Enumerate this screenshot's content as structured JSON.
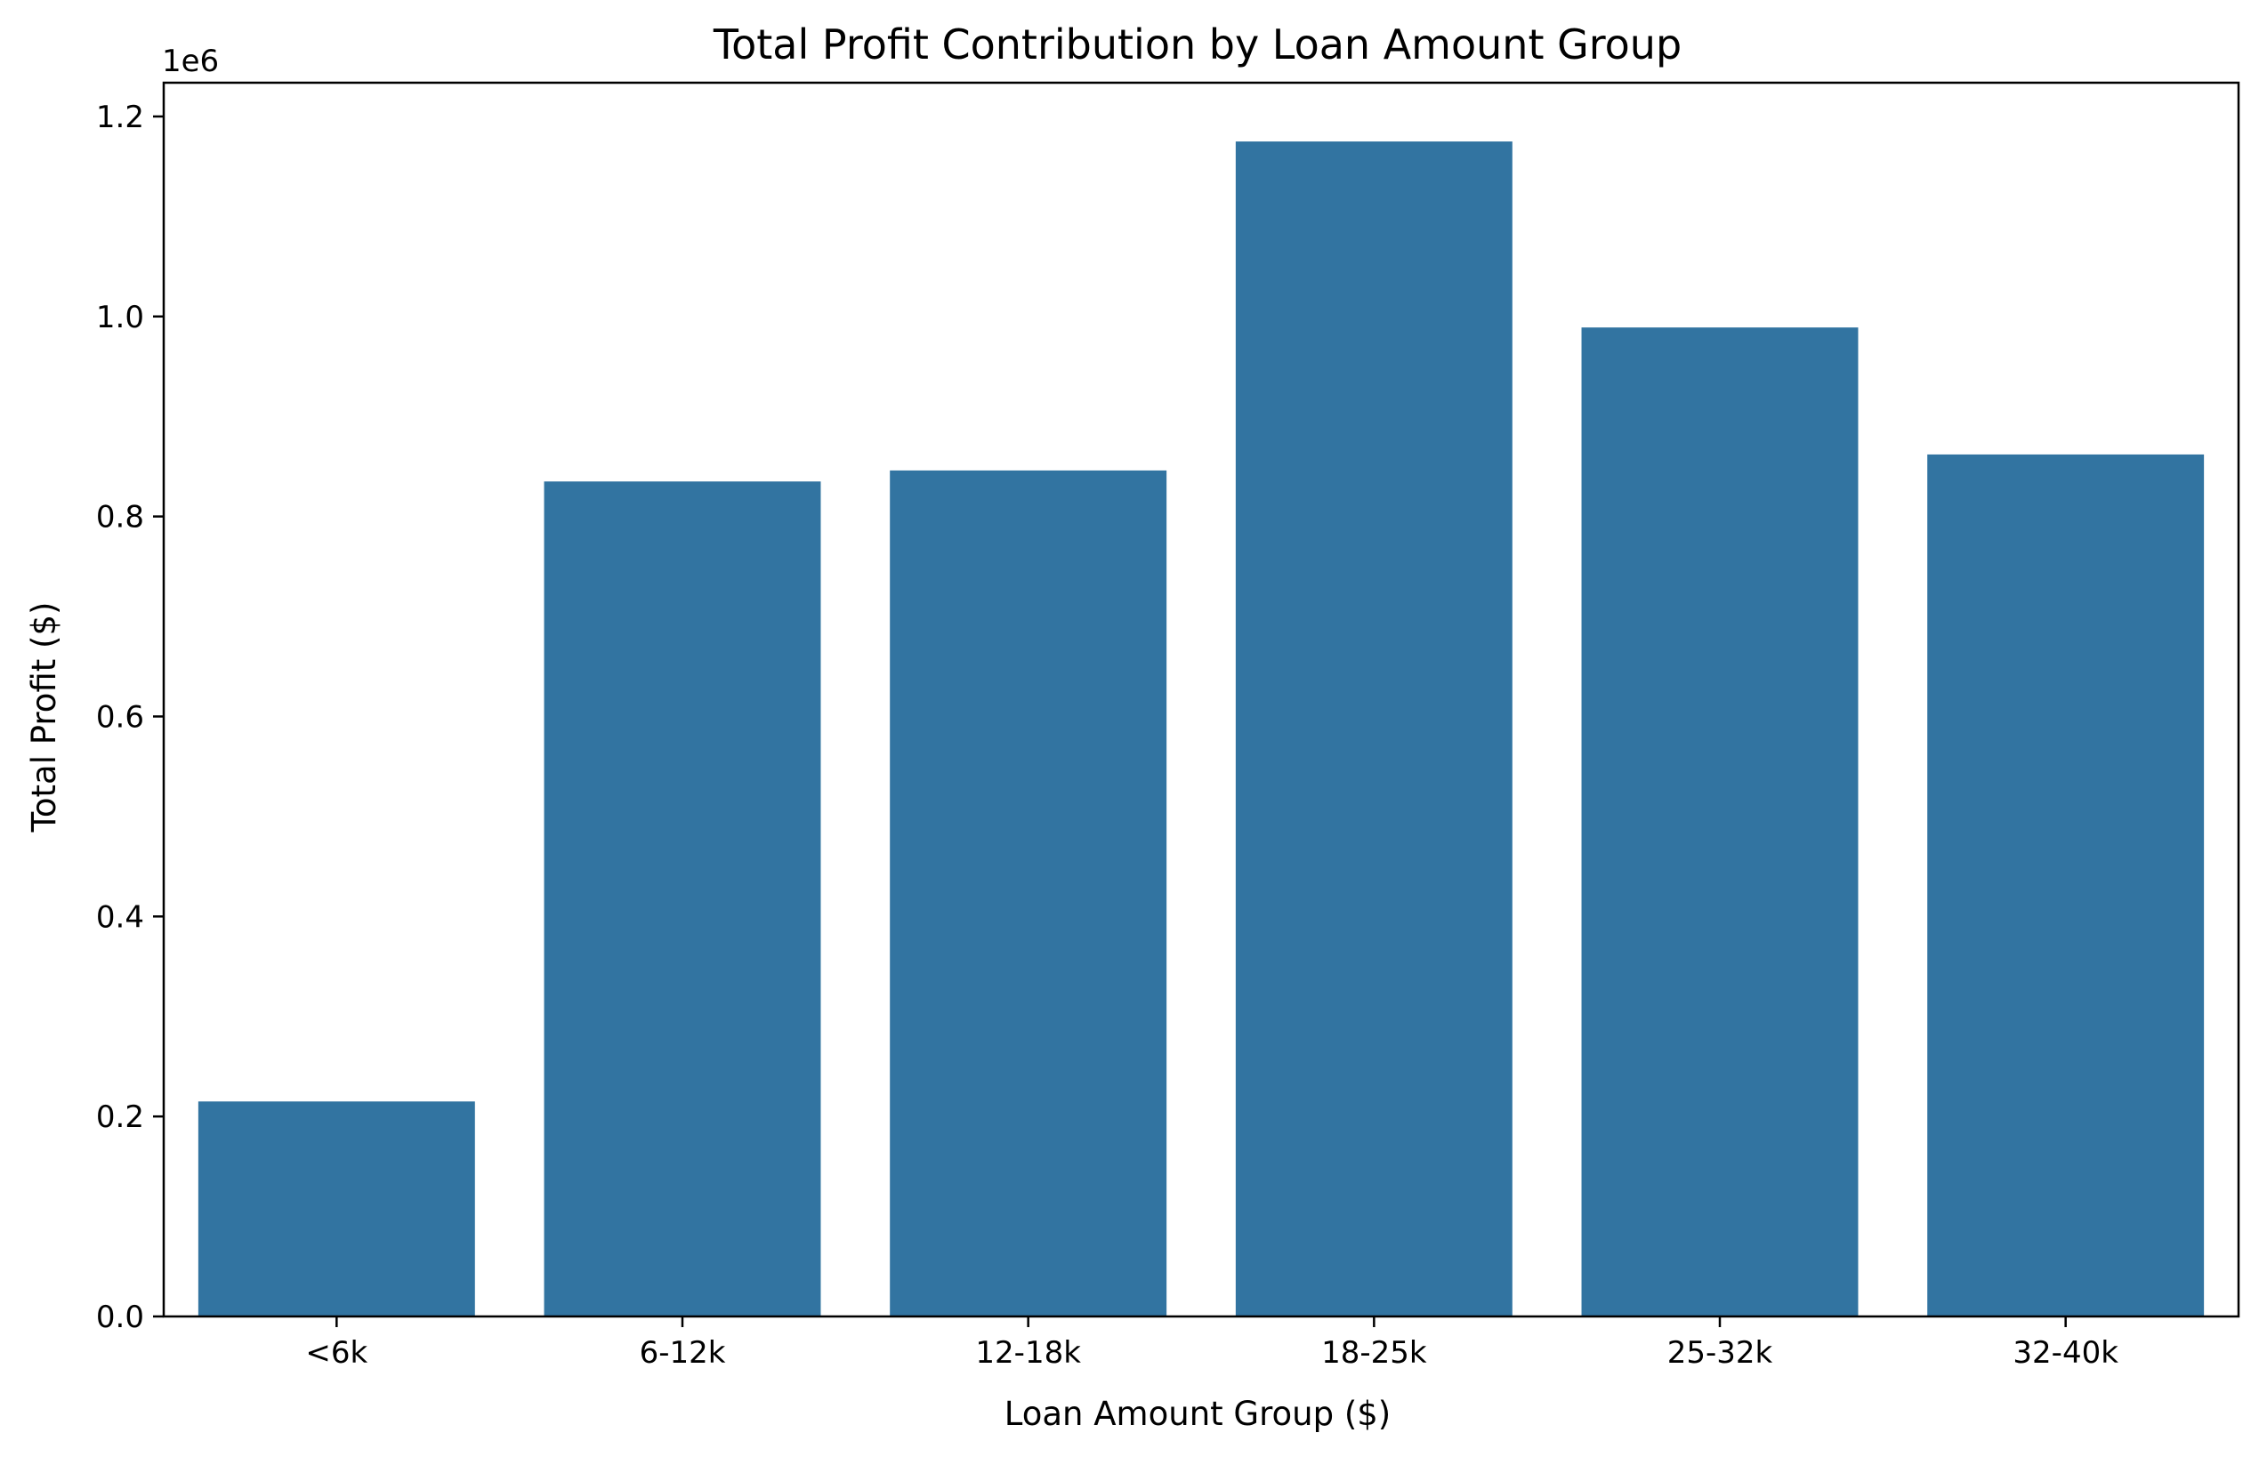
{
  "chart_data": {
    "type": "bar",
    "title": "Total Profit Contribution by Loan Amount Group",
    "xlabel": "Loan Amount Group ($)",
    "ylabel": "Total Profit ($)",
    "y_offset_label": "1e6",
    "categories": [
      "<6k",
      "6-12k",
      "12-18k",
      "18-25k",
      "25-32k",
      "32-40k"
    ],
    "values": [
      215000,
      835000,
      846000,
      1175000,
      989000,
      862000
    ],
    "ylim": [
      0,
      1233750
    ],
    "yticks": [
      0,
      200000,
      400000,
      600000,
      800000,
      1000000,
      1200000
    ],
    "ytick_labels": [
      "0.0",
      "0.2",
      "0.4",
      "0.6",
      "0.8",
      "1.0",
      "1.2"
    ],
    "grid": false,
    "legend": "none",
    "bar_color": "#3274a1"
  }
}
